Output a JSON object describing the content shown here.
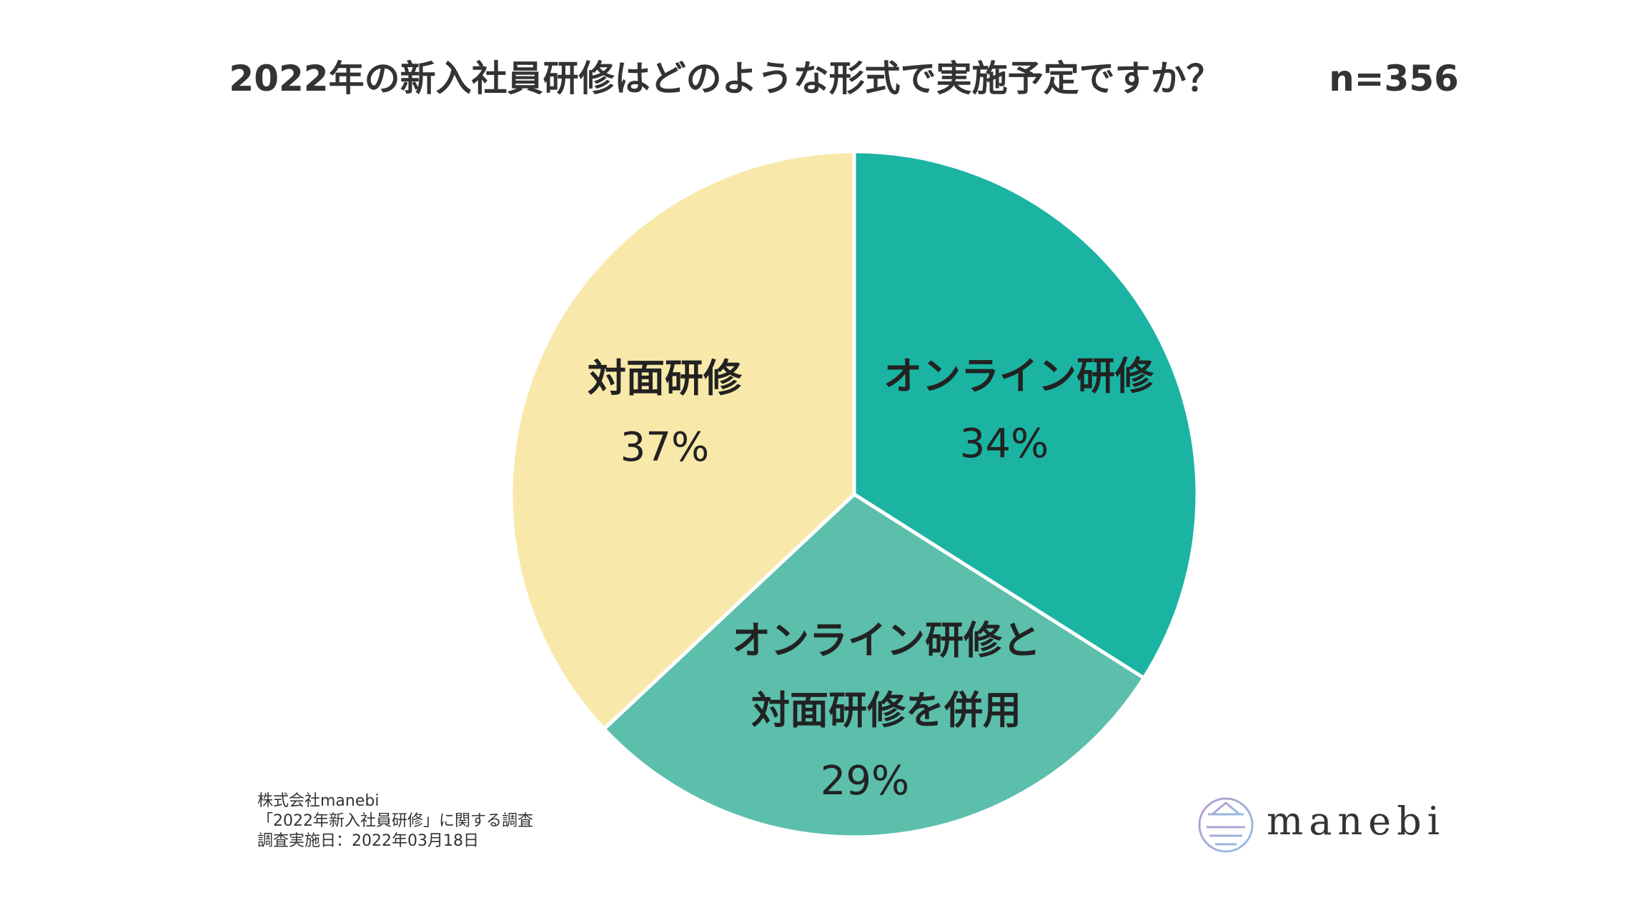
{
  "title": "2022年の新入社員研修はどのような形式で実施予定ですか？",
  "sample_size": "n=356",
  "chart_data": {
    "type": "pie",
    "title": "2022年の新入社員研修はどのような形式で実施予定ですか？",
    "n": "n=356",
    "start_angle_deg": 0,
    "direction": "clockwise",
    "slices": [
      {
        "name": "オンライン研修",
        "name_lines": [
          "オンライン研修"
        ],
        "value": 34,
        "label": "34%",
        "color": "#1bb4a3"
      },
      {
        "name": "オンライン研修と対面研修を併用",
        "name_lines": [
          "オンライン研修と",
          "対面研修を併用"
        ],
        "value": 29,
        "label": "29%",
        "color": "#5bbfab"
      },
      {
        "name": "対面研修",
        "name_lines": [
          "対面研修"
        ],
        "value": 37,
        "label": "37%",
        "color": "#f8e9aa"
      }
    ],
    "edge_color": "#ffffff"
  },
  "footer": {
    "company": "株式会社manebi",
    "survey": "「2022年新入社員研修」に関する調査",
    "date": "調査実施日：2022年03月18日"
  },
  "logo": {
    "text": "manebi",
    "colors": [
      "#b79ad0",
      "#8fbfe3"
    ]
  }
}
